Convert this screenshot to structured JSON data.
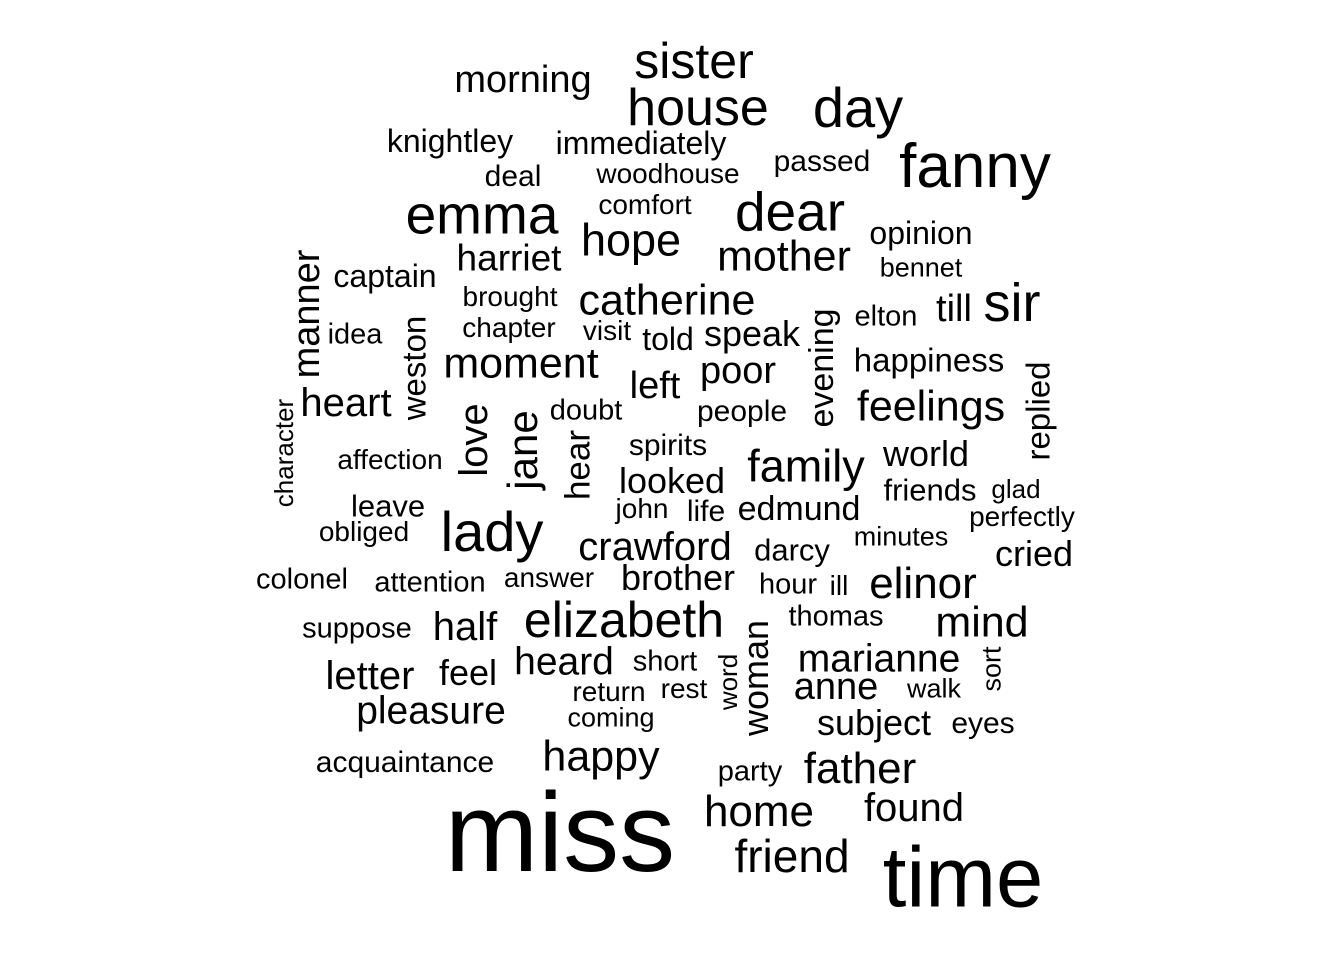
{
  "word_cloud": {
    "text_color": "#000000",
    "background": "#ffffff",
    "words": [
      {
        "text": "miss",
        "rotated": false
      },
      {
        "text": "time",
        "rotated": false
      },
      {
        "text": "fanny",
        "rotated": false
      },
      {
        "text": "emma",
        "rotated": false
      },
      {
        "text": "dear",
        "rotated": false
      },
      {
        "text": "house",
        "rotated": false
      },
      {
        "text": "day",
        "rotated": false
      },
      {
        "text": "sister",
        "rotated": false
      },
      {
        "text": "lady",
        "rotated": false
      },
      {
        "text": "elizabeth",
        "rotated": false
      },
      {
        "text": "sir",
        "rotated": false
      },
      {
        "text": "hope",
        "rotated": false
      },
      {
        "text": "mother",
        "rotated": false
      },
      {
        "text": "catherine",
        "rotated": false
      },
      {
        "text": "moment",
        "rotated": false
      },
      {
        "text": "family",
        "rotated": false
      },
      {
        "text": "crawford",
        "rotated": false
      },
      {
        "text": "elinor",
        "rotated": false
      },
      {
        "text": "mind",
        "rotated": false
      },
      {
        "text": "marianne",
        "rotated": false
      },
      {
        "text": "heard",
        "rotated": false
      },
      {
        "text": "feelings",
        "rotated": false
      },
      {
        "text": "happy",
        "rotated": false
      },
      {
        "text": "father",
        "rotated": false
      },
      {
        "text": "home",
        "rotated": false
      },
      {
        "text": "friend",
        "rotated": false
      },
      {
        "text": "found",
        "rotated": false
      },
      {
        "text": "jane",
        "rotated": true
      },
      {
        "text": "love",
        "rotated": true
      },
      {
        "text": "heart",
        "rotated": false
      },
      {
        "text": "brother",
        "rotated": false
      },
      {
        "text": "half",
        "rotated": false
      },
      {
        "text": "pleasure",
        "rotated": false
      },
      {
        "text": "letter",
        "rotated": false
      },
      {
        "text": "anne",
        "rotated": false
      },
      {
        "text": "subject",
        "rotated": false
      },
      {
        "text": "poor",
        "rotated": false
      },
      {
        "text": "speak",
        "rotated": false
      },
      {
        "text": "harriet",
        "rotated": false
      },
      {
        "text": "morning",
        "rotated": false
      },
      {
        "text": "manner",
        "rotated": true
      },
      {
        "text": "woman",
        "rotated": true
      },
      {
        "text": "left",
        "rotated": false
      },
      {
        "text": "looked",
        "rotated": false
      },
      {
        "text": "world",
        "rotated": false
      },
      {
        "text": "happiness",
        "rotated": false
      },
      {
        "text": "evening",
        "rotated": true
      },
      {
        "text": "edmund",
        "rotated": false
      },
      {
        "text": "cried",
        "rotated": false
      },
      {
        "text": "feel",
        "rotated": false
      },
      {
        "text": "till",
        "rotated": false
      },
      {
        "text": "replied",
        "rotated": true
      },
      {
        "text": "weston",
        "rotated": true
      },
      {
        "text": "hear",
        "rotated": true
      },
      {
        "text": "knightley",
        "rotated": false
      },
      {
        "text": "immediately",
        "rotated": false
      },
      {
        "text": "captain",
        "rotated": false
      },
      {
        "text": "opinion",
        "rotated": false
      },
      {
        "text": "passed",
        "rotated": false
      },
      {
        "text": "darcy",
        "rotated": false
      },
      {
        "text": "friends",
        "rotated": false
      },
      {
        "text": "people",
        "rotated": false
      },
      {
        "text": "thomas",
        "rotated": false
      },
      {
        "text": "spirits",
        "rotated": false
      },
      {
        "text": "idea",
        "rotated": false
      },
      {
        "text": "hour",
        "rotated": false
      },
      {
        "text": "told",
        "rotated": false
      },
      {
        "text": "deal",
        "rotated": false
      },
      {
        "text": "acquaintance",
        "rotated": false
      },
      {
        "text": "suppose",
        "rotated": false
      },
      {
        "text": "colonel",
        "rotated": false
      },
      {
        "text": "short",
        "rotated": false
      },
      {
        "text": "leave",
        "rotated": false
      },
      {
        "text": "woodhouse",
        "rotated": false
      },
      {
        "text": "comfort",
        "rotated": false
      },
      {
        "text": "brought",
        "rotated": false
      },
      {
        "text": "elton",
        "rotated": false
      },
      {
        "text": "bennet",
        "rotated": false
      },
      {
        "text": "visit",
        "rotated": false
      },
      {
        "text": "chapter",
        "rotated": false
      },
      {
        "text": "doubt",
        "rotated": false
      },
      {
        "text": "affection",
        "rotated": false
      },
      {
        "text": "attention",
        "rotated": false
      },
      {
        "text": "answer",
        "rotated": false
      },
      {
        "text": "obliged",
        "rotated": false
      },
      {
        "text": "john",
        "rotated": false
      },
      {
        "text": "life",
        "rotated": false
      },
      {
        "text": "minutes",
        "rotated": false
      },
      {
        "text": "perfectly",
        "rotated": false
      },
      {
        "text": "glad",
        "rotated": false
      },
      {
        "text": "return",
        "rotated": false
      },
      {
        "text": "rest",
        "rotated": false
      },
      {
        "text": "coming",
        "rotated": false
      },
      {
        "text": "party",
        "rotated": false
      },
      {
        "text": "eyes",
        "rotated": false
      },
      {
        "text": "walk",
        "rotated": false
      },
      {
        "text": "sort",
        "rotated": true
      },
      {
        "text": "word",
        "rotated": true
      },
      {
        "text": "ill",
        "rotated": false
      },
      {
        "text": "character",
        "rotated": true
      }
    ]
  }
}
